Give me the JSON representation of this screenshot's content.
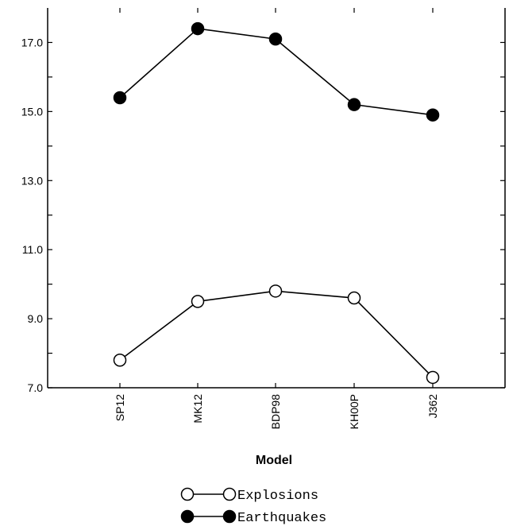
{
  "chart_data": {
    "type": "line",
    "categories": [
      "SP12",
      "MK12",
      "BDP98",
      "KH00P",
      "J362"
    ],
    "series": [
      {
        "name": "Explosions",
        "values": [
          7.8,
          9.5,
          9.8,
          9.6,
          7.3
        ],
        "marker": "open-circle",
        "color": "#000000"
      },
      {
        "name": "Earthquakes",
        "values": [
          15.4,
          17.4,
          17.1,
          15.2,
          14.9
        ],
        "marker": "filled-circle",
        "color": "#000000"
      }
    ],
    "xlabel": "Model",
    "ylabel": "",
    "ylim": [
      7.0,
      18.0
    ],
    "yticks_major": [
      7.0,
      9.0,
      11.0,
      13.0,
      15.0,
      17.0
    ],
    "ytick_labels": [
      "7.0",
      "9.0",
      "11.0",
      "13.0",
      "15.0",
      "17.0"
    ],
    "grid": false,
    "legend_position": "bottom-center"
  }
}
